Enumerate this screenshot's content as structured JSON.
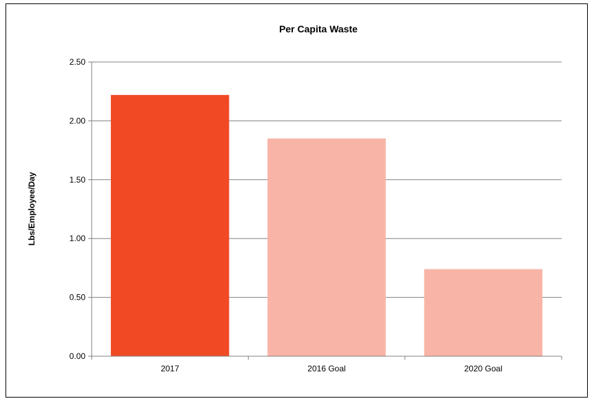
{
  "chart_data": {
    "type": "bar",
    "title": "Per Capita Waste",
    "xlabel": "",
    "ylabel": "Lbs/Employee/Day",
    "categories": [
      "2017",
      "2016 Goal",
      "2020 Goal"
    ],
    "values": [
      2.22,
      1.85,
      0.74
    ],
    "colors": [
      "#f04923",
      "#f8b5a7",
      "#f8b5a7"
    ],
    "ylim": [
      0,
      2.5
    ],
    "yticks": [
      "0.00",
      "0.50",
      "1.00",
      "1.50",
      "2.00",
      "2.50"
    ],
    "grid": true,
    "legend": "none"
  }
}
